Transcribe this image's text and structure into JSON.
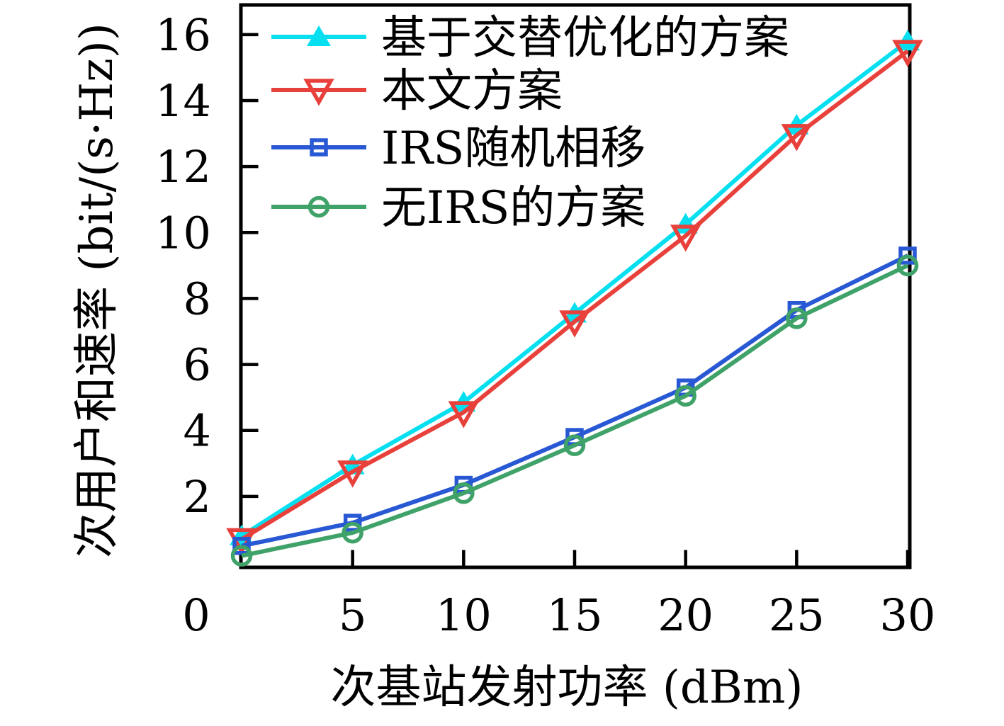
{
  "chart_data": {
    "type": "line",
    "title": "",
    "xlabel": "次基站发射功率 (dBm)",
    "ylabel": "次用户和速率 (bit/(s·Hz))",
    "x": [
      0,
      5,
      10,
      15,
      20,
      25,
      30
    ],
    "xtick_labels": [
      "0",
      "5",
      "10",
      "15",
      "20",
      "25",
      "30"
    ],
    "yticks": [
      2,
      4,
      6,
      8,
      10,
      12,
      14,
      16
    ],
    "ytick_labels": [
      "2",
      "4",
      "6",
      "8",
      "10",
      "12",
      "14",
      "16"
    ],
    "xlim": [
      0,
      30.1
    ],
    "ylim": [
      -0.2,
      16.9
    ],
    "grid": false,
    "legend_position": "top-left-inside",
    "axis_color": "#000000",
    "series": [
      {
        "name": "基于交替优化的方案",
        "color": "#06dff0",
        "marker": "triangle-up-filled",
        "values": [
          0.8,
          2.95,
          4.85,
          7.55,
          10.25,
          13.25,
          15.8
        ]
      },
      {
        "name": "本文方案",
        "color": "#e8413c",
        "marker": "triangle-down-open",
        "values": [
          0.7,
          2.75,
          4.55,
          7.3,
          9.9,
          12.95,
          15.5
        ]
      },
      {
        "name": "IRS随机相移",
        "color": "#2858d4",
        "marker": "square-open",
        "values": [
          0.5,
          1.2,
          2.35,
          3.8,
          5.3,
          7.65,
          9.3
        ]
      },
      {
        "name": "无IRS的方案",
        "color": "#3fa268",
        "marker": "circle-open",
        "values": [
          0.2,
          0.9,
          2.1,
          3.55,
          5.05,
          7.4,
          9.0
        ]
      }
    ]
  }
}
